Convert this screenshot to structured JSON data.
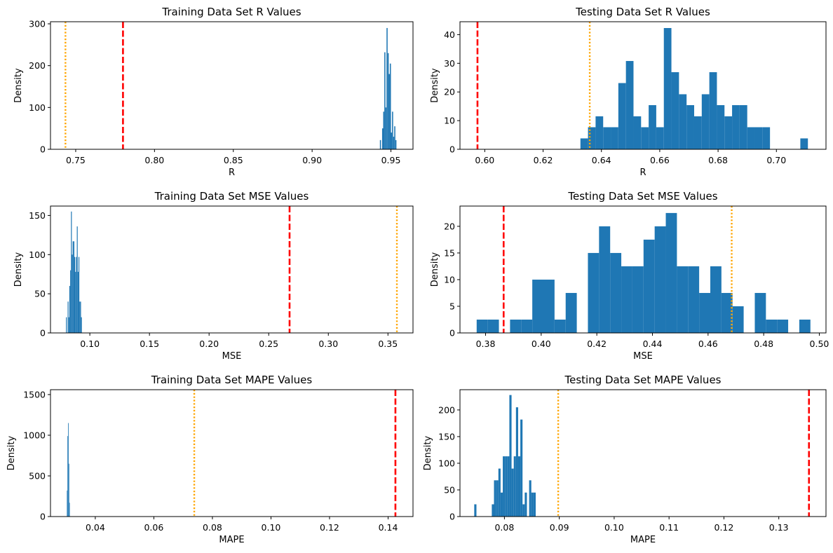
{
  "chart_data": [
    {
      "type": "bar",
      "title": "Training Data Set R Values",
      "xlabel": "R",
      "ylabel": "Density",
      "xlim": [
        0.734,
        0.964
      ],
      "ylim": [
        0,
        305
      ],
      "xticks": [
        "0.75",
        "0.80",
        "0.85",
        "0.90",
        "0.95"
      ],
      "yticks": [
        "0",
        "100",
        "200",
        "300"
      ],
      "bins": [
        [
          0.943,
          0.9437,
          22
        ],
        [
          0.9437,
          0.9444,
          0
        ],
        [
          0.9444,
          0.9451,
          50
        ],
        [
          0.9451,
          0.9458,
          90
        ],
        [
          0.9458,
          0.9465,
          232
        ],
        [
          0.9465,
          0.9472,
          100
        ],
        [
          0.9472,
          0.9479,
          290
        ],
        [
          0.9479,
          0.9486,
          230
        ],
        [
          0.9486,
          0.9493,
          180
        ],
        [
          0.9493,
          0.95,
          205
        ],
        [
          0.95,
          0.9507,
          40
        ],
        [
          0.9507,
          0.9514,
          90
        ],
        [
          0.9514,
          0.9521,
          30
        ],
        [
          0.9521,
          0.9528,
          55
        ],
        [
          0.9528,
          0.9535,
          22
        ]
      ],
      "vlines": [
        {
          "x": 0.78,
          "color": "#ff0000",
          "style": "dashed"
        },
        {
          "x": 0.7435,
          "color": "#ffa500",
          "style": "dotted"
        }
      ]
    },
    {
      "type": "bar",
      "title": "Testing Data Set R Values",
      "xlabel": "R",
      "ylabel": "Density",
      "xlim": [
        0.5915,
        0.717
      ],
      "ylim": [
        0,
        44.5
      ],
      "xticks": [
        "0.60",
        "0.62",
        "0.64",
        "0.66",
        "0.68",
        "0.70"
      ],
      "yticks": [
        "0",
        "10",
        "20",
        "30",
        "40"
      ],
      "bins": [
        [
          0.6328,
          0.6354,
          3.8
        ],
        [
          0.6354,
          0.638,
          7.7
        ],
        [
          0.638,
          0.6406,
          11.5
        ],
        [
          0.6406,
          0.6432,
          7.7
        ],
        [
          0.6432,
          0.6458,
          7.7
        ],
        [
          0.6458,
          0.6484,
          23.1
        ],
        [
          0.6484,
          0.651,
          30.8
        ],
        [
          0.651,
          0.6536,
          11.5
        ],
        [
          0.6536,
          0.6562,
          7.7
        ],
        [
          0.6562,
          0.6588,
          15.4
        ],
        [
          0.6588,
          0.6614,
          7.7
        ],
        [
          0.6614,
          0.664,
          42.3
        ],
        [
          0.664,
          0.6666,
          26.9
        ],
        [
          0.6666,
          0.6692,
          19.2
        ],
        [
          0.6692,
          0.6718,
          15.4
        ],
        [
          0.6718,
          0.6744,
          11.5
        ],
        [
          0.6744,
          0.677,
          19.2
        ],
        [
          0.677,
          0.6796,
          26.9
        ],
        [
          0.6796,
          0.6822,
          15.4
        ],
        [
          0.6822,
          0.6848,
          11.5
        ],
        [
          0.6848,
          0.6874,
          15.4
        ],
        [
          0.6874,
          0.69,
          15.4
        ],
        [
          0.69,
          0.6926,
          7.7
        ],
        [
          0.6926,
          0.6952,
          7.7
        ],
        [
          0.6952,
          0.6978,
          7.7
        ],
        [
          0.7082,
          0.7108,
          3.8
        ]
      ],
      "vlines": [
        {
          "x": 0.5975,
          "color": "#ff0000",
          "style": "dashed"
        },
        {
          "x": 0.636,
          "color": "#ffa500",
          "style": "dotted"
        }
      ]
    },
    {
      "type": "bar",
      "title": "Training Data Set MSE Values",
      "xlabel": "MSE",
      "ylabel": "Density",
      "xlim": [
        0.067,
        0.371
      ],
      "ylim": [
        0,
        162
      ],
      "xticks": [
        "0.10",
        "0.15",
        "0.20",
        "0.25",
        "0.30",
        "0.35"
      ],
      "yticks": [
        "0",
        "50",
        "100",
        "150"
      ],
      "bins": [
        [
          0.08,
          0.0807,
          20
        ],
        [
          0.0807,
          0.0814,
          0
        ],
        [
          0.0814,
          0.0821,
          40
        ],
        [
          0.0821,
          0.0828,
          20
        ],
        [
          0.0828,
          0.0835,
          60
        ],
        [
          0.0835,
          0.0842,
          80
        ],
        [
          0.0842,
          0.0849,
          155
        ],
        [
          0.0849,
          0.0856,
          100
        ],
        [
          0.0856,
          0.0863,
          117
        ],
        [
          0.0863,
          0.087,
          117
        ],
        [
          0.087,
          0.0877,
          97
        ],
        [
          0.0877,
          0.0884,
          78
        ],
        [
          0.0884,
          0.0891,
          97
        ],
        [
          0.0891,
          0.0898,
          136
        ],
        [
          0.0898,
          0.0905,
          78
        ],
        [
          0.0905,
          0.0912,
          97
        ],
        [
          0.0912,
          0.0919,
          40
        ],
        [
          0.0919,
          0.0926,
          40
        ],
        [
          0.0926,
          0.0933,
          20
        ]
      ],
      "vlines": [
        {
          "x": 0.2675,
          "color": "#ff0000",
          "style": "dashed"
        },
        {
          "x": 0.3575,
          "color": "#ffa500",
          "style": "dotted"
        }
      ]
    },
    {
      "type": "bar",
      "title": "Testing Data Set MSE Values",
      "xlabel": "MSE",
      "ylabel": "Density",
      "xlim": [
        0.3708,
        0.5024
      ],
      "ylim": [
        0,
        23.8
      ],
      "xticks": [
        "0.38",
        "0.40",
        "0.42",
        "0.44",
        "0.46",
        "0.48",
        "0.50"
      ],
      "yticks": [
        "0",
        "5",
        "10",
        "15",
        "20"
      ],
      "bins": [
        [
          0.3768,
          0.3808,
          2.5
        ],
        [
          0.3808,
          0.3848,
          2.5
        ],
        [
          0.3848,
          0.3888,
          0
        ],
        [
          0.3888,
          0.3928,
          2.5
        ],
        [
          0.3928,
          0.3968,
          2.5
        ],
        [
          0.3968,
          0.4008,
          10.0
        ],
        [
          0.4008,
          0.4048,
          10.0
        ],
        [
          0.4048,
          0.4088,
          2.5
        ],
        [
          0.4088,
          0.4128,
          7.5
        ],
        [
          0.4128,
          0.4168,
          0
        ],
        [
          0.4168,
          0.4208,
          15.0
        ],
        [
          0.4208,
          0.4248,
          20.0
        ],
        [
          0.4248,
          0.4288,
          15.0
        ],
        [
          0.4288,
          0.4328,
          12.5
        ],
        [
          0.4328,
          0.4368,
          12.5
        ],
        [
          0.4368,
          0.4408,
          17.5
        ],
        [
          0.4408,
          0.4448,
          20.0
        ],
        [
          0.4448,
          0.4488,
          22.5
        ],
        [
          0.4488,
          0.4528,
          12.5
        ],
        [
          0.4528,
          0.4568,
          12.5
        ],
        [
          0.4568,
          0.4608,
          7.5
        ],
        [
          0.4608,
          0.4648,
          12.5
        ],
        [
          0.4648,
          0.4688,
          7.5
        ],
        [
          0.4688,
          0.4728,
          5.0
        ],
        [
          0.4728,
          0.4768,
          0
        ],
        [
          0.4768,
          0.4808,
          7.5
        ],
        [
          0.4808,
          0.4848,
          2.5
        ],
        [
          0.4848,
          0.4888,
          2.5
        ],
        [
          0.4888,
          0.4928,
          0
        ],
        [
          0.4928,
          0.4968,
          2.5
        ]
      ],
      "vlines": [
        {
          "x": 0.3865,
          "color": "#ff0000",
          "style": "dashed"
        },
        {
          "x": 0.4685,
          "color": "#ffa500",
          "style": "dotted"
        }
      ]
    },
    {
      "type": "bar",
      "title": "Training Data Set MAPE Values",
      "xlabel": "MAPE",
      "ylabel": "Density",
      "xlim": [
        0.0247,
        0.1485
      ],
      "ylim": [
        0,
        1560
      ],
      "xticks": [
        "0.04",
        "0.06",
        "0.08",
        "0.10",
        "0.12",
        "0.14"
      ],
      "yticks": [
        "0",
        "500",
        "1000",
        "1500"
      ],
      "bins": [
        [
          0.0303,
          0.0305,
          320
        ],
        [
          0.0305,
          0.0307,
          990
        ],
        [
          0.0307,
          0.0309,
          1150
        ],
        [
          0.0309,
          0.0311,
          650
        ],
        [
          0.0311,
          0.0313,
          170
        ]
      ],
      "vlines": [
        {
          "x": 0.1425,
          "color": "#ff0000",
          "style": "dashed"
        },
        {
          "x": 0.0738,
          "color": "#ffa500",
          "style": "dotted"
        }
      ]
    },
    {
      "type": "bar",
      "title": "Testing Data Set MAPE Values",
      "xlabel": "MAPE",
      "ylabel": "Density",
      "xlim": [
        0.0719,
        0.1386
      ],
      "ylim": [
        0,
        238
      ],
      "xticks": [
        "0.08",
        "0.09",
        "0.10",
        "0.11",
        "0.12",
        "0.13"
      ],
      "yticks": [
        "0",
        "50",
        "100",
        "150",
        "200"
      ],
      "bins": [
        [
          0.0745,
          0.0749,
          23
        ],
        [
          0.0777,
          0.0781,
          23
        ],
        [
          0.0781,
          0.0785,
          68
        ],
        [
          0.0785,
          0.0789,
          68
        ],
        [
          0.0789,
          0.0793,
          90
        ],
        [
          0.0793,
          0.0797,
          45
        ],
        [
          0.0797,
          0.0801,
          113
        ],
        [
          0.0801,
          0.0805,
          113
        ],
        [
          0.0805,
          0.0809,
          113
        ],
        [
          0.0809,
          0.0813,
          228
        ],
        [
          0.0813,
          0.0817,
          90
        ],
        [
          0.0817,
          0.0821,
          113
        ],
        [
          0.0821,
          0.0825,
          205
        ],
        [
          0.0825,
          0.0829,
          113
        ],
        [
          0.0829,
          0.0833,
          182
        ],
        [
          0.0833,
          0.0837,
          23
        ],
        [
          0.0837,
          0.0841,
          45
        ],
        [
          0.0841,
          0.0845,
          0
        ],
        [
          0.0845,
          0.0849,
          68
        ],
        [
          0.0849,
          0.0853,
          45
        ],
        [
          0.0853,
          0.0857,
          45
        ]
      ],
      "vlines": [
        {
          "x": 0.1355,
          "color": "#ff0000",
          "style": "dashed"
        },
        {
          "x": 0.0898,
          "color": "#ffa500",
          "style": "dotted"
        }
      ]
    }
  ],
  "colors": {
    "bar": "#1f77b4",
    "spine": "#000000"
  }
}
